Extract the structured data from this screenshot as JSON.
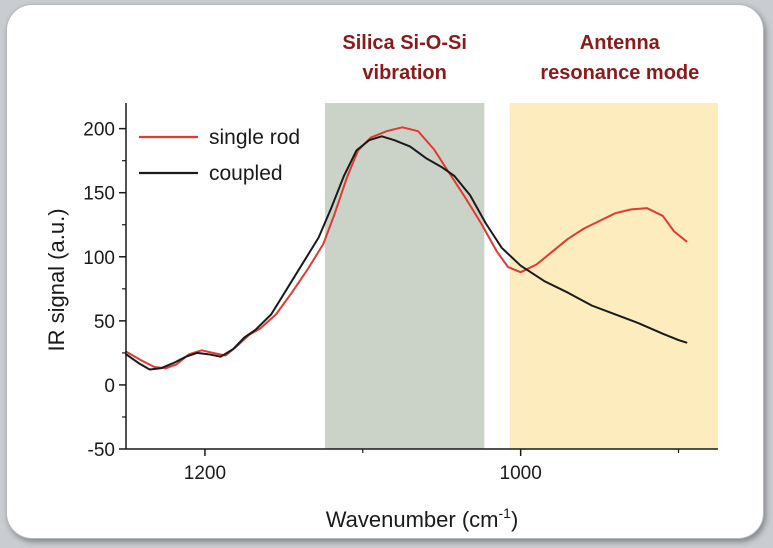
{
  "chart_data": {
    "type": "line",
    "xlabel": "Wavenumber (cm",
    "xlabel_superscript": "-1",
    "xlabel_suffix": ")",
    "ylabel": "IR signal (a.u.)",
    "xlim": [
      1250,
      875
    ],
    "x_reversed": true,
    "ylim": [
      -50,
      220
    ],
    "x_ticks": [
      1200,
      1000
    ],
    "y_ticks": [
      -50,
      0,
      50,
      100,
      150,
      200
    ],
    "grid": false,
    "legend_position": "top-left",
    "regions": [
      {
        "label_lines": [
          "Silica Si-O-Si",
          "vibration"
        ],
        "x_start": 1124,
        "x_end": 1023,
        "color": "#cbd3c8"
      },
      {
        "label_lines": [
          "Antenna",
          "resonance mode"
        ],
        "x_start": 1007,
        "x_end": 875,
        "color": "#fcecbe"
      }
    ],
    "series": [
      {
        "name": "single rod",
        "color": "#e03a32",
        "points": [
          [
            1250,
            26
          ],
          [
            1240,
            19
          ],
          [
            1232,
            14
          ],
          [
            1225,
            13
          ],
          [
            1218,
            16
          ],
          [
            1210,
            24
          ],
          [
            1202,
            27
          ],
          [
            1195,
            25
          ],
          [
            1187,
            23
          ],
          [
            1180,
            30
          ],
          [
            1172,
            39
          ],
          [
            1165,
            44
          ],
          [
            1155,
            55
          ],
          [
            1145,
            72
          ],
          [
            1135,
            90
          ],
          [
            1125,
            110
          ],
          [
            1118,
            133
          ],
          [
            1110,
            162
          ],
          [
            1103,
            183
          ],
          [
            1095,
            193
          ],
          [
            1085,
            198
          ],
          [
            1075,
            201
          ],
          [
            1065,
            198
          ],
          [
            1055,
            184
          ],
          [
            1045,
            165
          ],
          [
            1035,
            146
          ],
          [
            1025,
            126
          ],
          [
            1015,
            104
          ],
          [
            1008,
            92
          ],
          [
            1000,
            88
          ],
          [
            990,
            94
          ],
          [
            980,
            104
          ],
          [
            970,
            114
          ],
          [
            960,
            122
          ],
          [
            950,
            128
          ],
          [
            940,
            134
          ],
          [
            930,
            137
          ],
          [
            920,
            138
          ],
          [
            910,
            132
          ],
          [
            903,
            120
          ],
          [
            895,
            112
          ]
        ]
      },
      {
        "name": "coupled",
        "color": "#1a1a1a",
        "points": [
          [
            1250,
            24
          ],
          [
            1242,
            17
          ],
          [
            1235,
            12
          ],
          [
            1228,
            13
          ],
          [
            1220,
            17
          ],
          [
            1212,
            22
          ],
          [
            1205,
            25
          ],
          [
            1198,
            24
          ],
          [
            1190,
            22
          ],
          [
            1182,
            28
          ],
          [
            1175,
            37
          ],
          [
            1168,
            43
          ],
          [
            1158,
            55
          ],
          [
            1148,
            75
          ],
          [
            1138,
            95
          ],
          [
            1128,
            115
          ],
          [
            1120,
            138
          ],
          [
            1112,
            163
          ],
          [
            1104,
            183
          ],
          [
            1096,
            191
          ],
          [
            1088,
            194
          ],
          [
            1080,
            191
          ],
          [
            1070,
            186
          ],
          [
            1060,
            177
          ],
          [
            1050,
            170
          ],
          [
            1042,
            163
          ],
          [
            1032,
            148
          ],
          [
            1022,
            126
          ],
          [
            1012,
            107
          ],
          [
            1000,
            93
          ],
          [
            985,
            81
          ],
          [
            970,
            72
          ],
          [
            955,
            62
          ],
          [
            940,
            55
          ],
          [
            925,
            48
          ],
          [
            910,
            40
          ],
          [
            900,
            35
          ],
          [
            895,
            33
          ]
        ]
      }
    ]
  }
}
